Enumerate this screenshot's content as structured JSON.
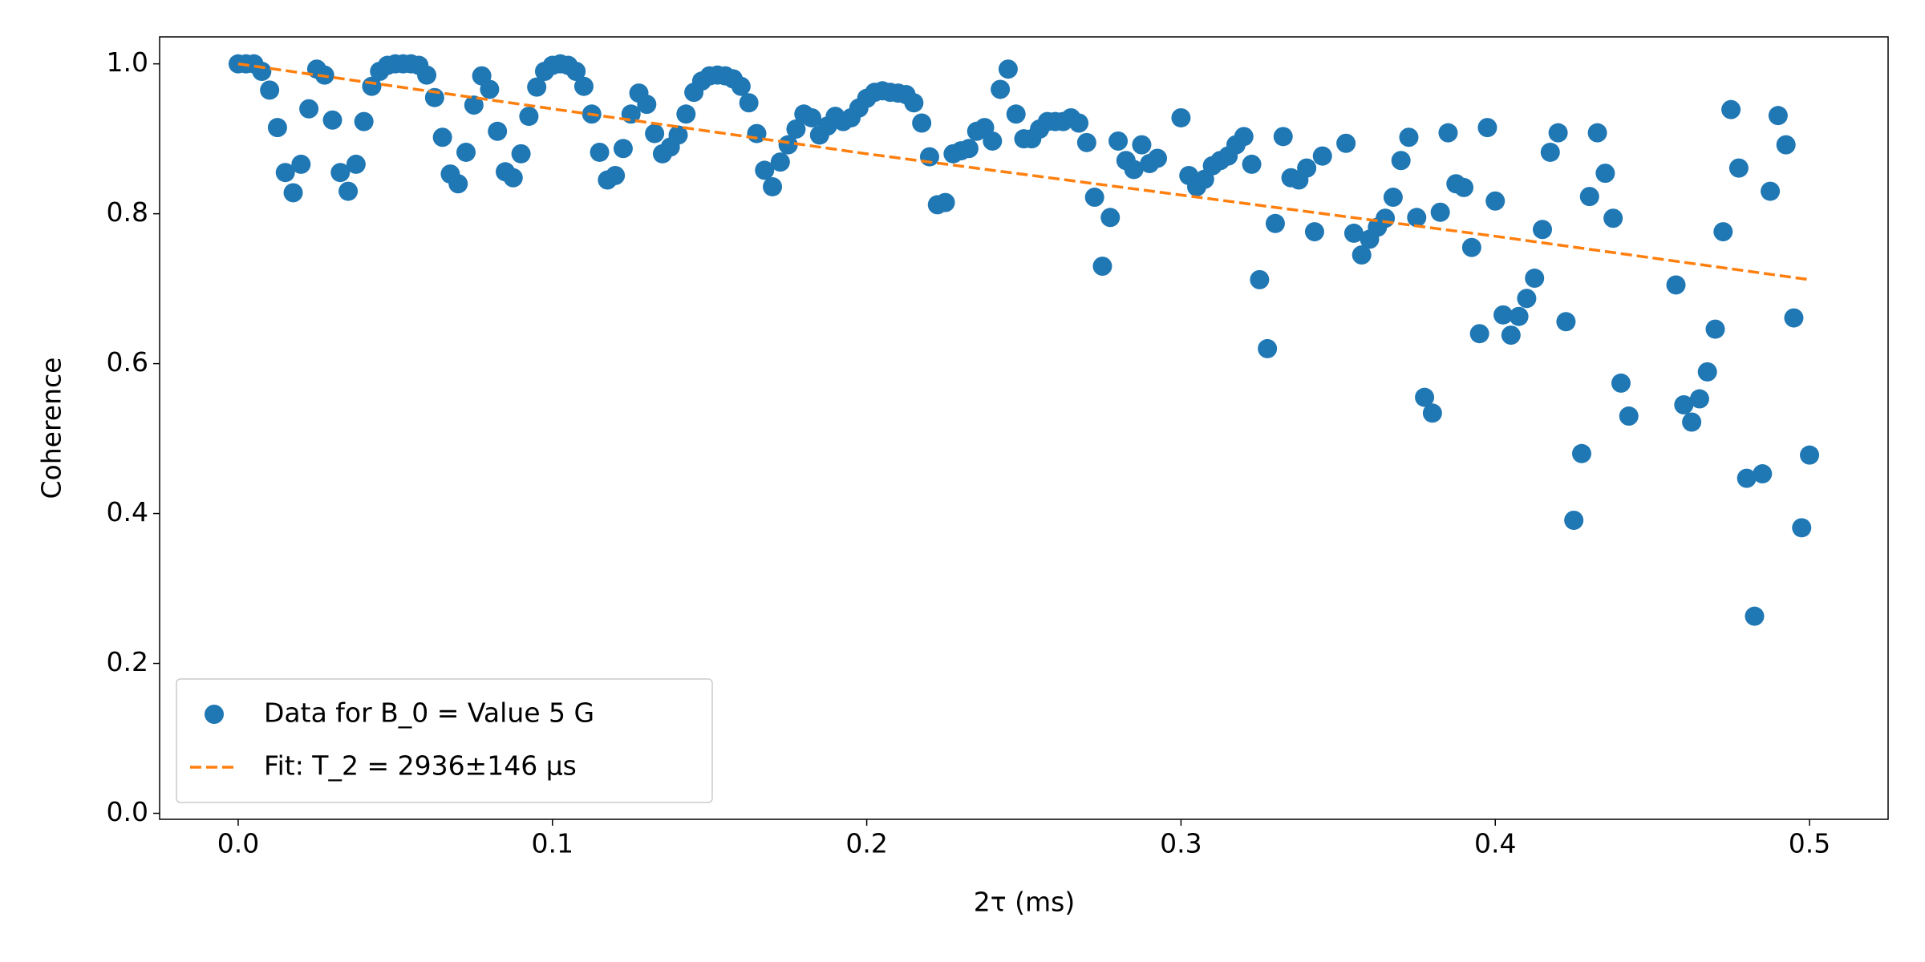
{
  "chart_data": {
    "type": "scatter",
    "xlabel": "2τ (ms)",
    "ylabel": "Coherence",
    "xlim": [
      -0.025,
      0.525
    ],
    "ylim": [
      -0.008,
      1.036
    ],
    "xticks": [
      {
        "value": 0,
        "label": "0.0"
      },
      0.1,
      0.2,
      0.3,
      0.4,
      0.5
    ],
    "yticks": [
      {
        "value": 0,
        "label": "0.0"
      },
      0.2,
      0.4,
      0.6,
      0.8,
      {
        "value": 1,
        "label": "1.0"
      }
    ],
    "legend": "lower left",
    "series": [
      {
        "name": "Data for B_0 = Value 5 G",
        "color": "#1f77b4",
        "marker": "circle",
        "x": [
          0,
          0.0025,
          0.005,
          0.0075,
          0.01,
          0.0125,
          0.015,
          0.0175,
          0.02,
          0.0225,
          0.025,
          0.0275,
          0.03,
          0.0325,
          0.035,
          0.0375,
          0.04,
          0.0425,
          0.045,
          0.0475,
          0.05,
          0.0525,
          0.055,
          0.0575,
          0.06,
          0.0625,
          0.065,
          0.0675,
          0.07,
          0.0725,
          0.075,
          0.0775,
          0.08,
          0.0825,
          0.085,
          0.0875,
          0.09,
          0.0925,
          0.095,
          0.0975,
          0.1,
          0.1025,
          0.105,
          0.1075,
          0.11,
          0.1125,
          0.115,
          0.1175,
          0.12,
          0.1225,
          0.125,
          0.1275,
          0.13,
          0.1325,
          0.135,
          0.1375,
          0.14,
          0.1425,
          0.145,
          0.1475,
          0.15,
          0.1525,
          0.155,
          0.1575,
          0.16,
          0.1625,
          0.165,
          0.1675,
          0.17,
          0.1725,
          0.175,
          0.1775,
          0.18,
          0.1825,
          0.185,
          0.1875,
          0.19,
          0.1925,
          0.195,
          0.1975,
          0.2,
          0.2025,
          0.205,
          0.2075,
          0.21,
          0.2125,
          0.215,
          0.2175,
          0.22,
          0.2225,
          0.225,
          0.2275,
          0.23,
          0.2325,
          0.235,
          0.2375,
          0.24,
          0.2425,
          0.245,
          0.2475,
          0.25,
          0.2525,
          0.255,
          0.2575,
          0.26,
          0.2625,
          0.265,
          0.2675,
          0.27,
          0.2725,
          0.275,
          0.2775,
          0.28,
          0.2825,
          0.285,
          0.2875,
          0.29,
          0.2925,
          0.3,
          0.3025,
          0.305,
          0.3075,
          0.31,
          0.3125,
          0.315,
          0.3175,
          0.32,
          0.3225,
          0.325,
          0.3275,
          0.33,
          0.3325,
          0.335,
          0.3375,
          0.34,
          0.3425,
          0.345,
          0.3525,
          0.355,
          0.3575,
          0.36,
          0.3625,
          0.365,
          0.3675,
          0.37,
          0.3725,
          0.375,
          0.3775,
          0.38,
          0.3825,
          0.385,
          0.3875,
          0.39,
          0.3925,
          0.395,
          0.3975,
          0.4,
          0.4025,
          0.405,
          0.4075,
          0.41,
          0.4125,
          0.415,
          0.4175,
          0.42,
          0.4225,
          0.425,
          0.4275,
          0.43,
          0.4325,
          0.435,
          0.4375,
          0.44,
          0.4425,
          0.4575,
          0.46,
          0.4625,
          0.465,
          0.4675,
          0.47,
          0.4725,
          0.475,
          0.4775,
          0.48,
          0.4825,
          0.485,
          0.4875,
          0.49,
          0.4925,
          0.495,
          0.4975,
          0.5
        ],
        "values": [
          1.0,
          1.0,
          1.0,
          0.99,
          0.965,
          0.915,
          0.855,
          0.828,
          0.866,
          0.94,
          0.993,
          0.985,
          0.925,
          0.855,
          0.83,
          0.866,
          0.923,
          0.97,
          0.99,
          0.998,
          1.0,
          1.0,
          1.0,
          0.998,
          0.985,
          0.955,
          0.902,
          0.853,
          0.84,
          0.882,
          0.945,
          0.984,
          0.966,
          0.91,
          0.856,
          0.848,
          0.88,
          0.93,
          0.969,
          0.99,
          0.998,
          1.0,
          0.998,
          0.99,
          0.97,
          0.933,
          0.882,
          0.845,
          0.851,
          0.887,
          0.933,
          0.961,
          0.946,
          0.907,
          0.88,
          0.889,
          0.905,
          0.933,
          0.962,
          0.977,
          0.984,
          0.985,
          0.984,
          0.98,
          0.97,
          0.948,
          0.907,
          0.858,
          0.836,
          0.869,
          0.892,
          0.913,
          0.933,
          0.928,
          0.905,
          0.917,
          0.93,
          0.923,
          0.928,
          0.941,
          0.954,
          0.962,
          0.964,
          0.962,
          0.961,
          0.959,
          0.948,
          0.921,
          0.876,
          0.812,
          0.815,
          0.88,
          0.884,
          0.887,
          0.91,
          0.915,
          0.897,
          0.966,
          0.993,
          0.933,
          0.9,
          0.9,
          0.913,
          0.923,
          0.923,
          0.923,
          0.928,
          0.921,
          0.895,
          0.822,
          0.73,
          0.795,
          0.897,
          0.871,
          0.859,
          0.892,
          0.867,
          0.874,
          0.928,
          0.851,
          0.836,
          0.846,
          0.864,
          0.871,
          0.877,
          0.892,
          0.903,
          0.866,
          0.712,
          0.62,
          0.787,
          0.903,
          0.848,
          0.845,
          0.861,
          0.776,
          0.877,
          0.894,
          0.774,
          0.745,
          0.766,
          0.782,
          0.794,
          0.822,
          0.871,
          0.902,
          0.795,
          0.555,
          0.534,
          0.802,
          0.908,
          0.84,
          0.835,
          0.755,
          0.64,
          0.915,
          0.817,
          0.665,
          0.638,
          0.663,
          0.687,
          0.714,
          0.779,
          0.882,
          0.908,
          0.656,
          0.391,
          0.48,
          0.823,
          0.908,
          0.854,
          0.794,
          0.574,
          0.53,
          0.705,
          0.545,
          0.522,
          0.553,
          0.589,
          0.646,
          0.776,
          0.939,
          0.861,
          0.447,
          0.263,
          0.453,
          0.83,
          0.931,
          0.892,
          0.661,
          0.381,
          0.478
        ]
      },
      {
        "name": "Fit: T_2 = 2936±146 μs",
        "color": "#ff7f0e",
        "line": "dashed",
        "x": [
          0,
          0.1,
          0.2,
          0.3,
          0.4,
          0.5
        ],
        "values": [
          1.0,
          0.94,
          0.88,
          0.825,
          0.77,
          0.712
        ]
      }
    ]
  }
}
